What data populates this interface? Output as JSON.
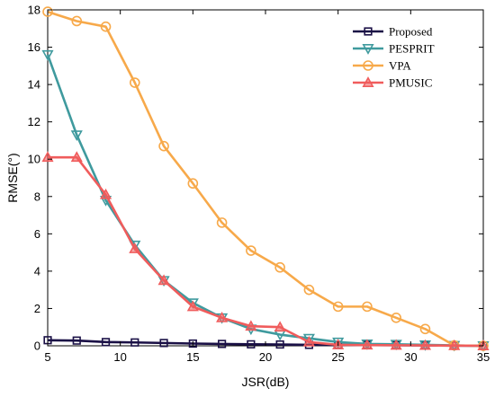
{
  "chart_data": {
    "type": "line",
    "title": "",
    "xlabel": "JSR(dB)",
    "ylabel": "RMSE(°)",
    "xlim": [
      5,
      35
    ],
    "ylim": [
      0,
      18
    ],
    "xticks": [
      5,
      10,
      15,
      20,
      25,
      30,
      35
    ],
    "yticks": [
      0,
      2,
      4,
      6,
      8,
      10,
      12,
      14,
      16,
      18
    ],
    "grid": false,
    "legend": "top-right",
    "x": [
      5,
      7,
      9,
      11,
      13,
      15,
      17,
      19,
      21,
      23,
      25,
      27,
      29,
      31,
      33,
      35
    ],
    "series": [
      {
        "name": "Proposed",
        "color": "#1a1046",
        "marker": "square",
        "values": [
          0.3,
          0.28,
          0.2,
          0.18,
          0.15,
          0.12,
          0.1,
          0.08,
          0.07,
          0.05,
          0.05,
          0.04,
          0.03,
          0.02,
          0.01,
          0.0
        ]
      },
      {
        "name": "PESPRIT",
        "color": "#3f9a9e",
        "marker": "triangle-down",
        "values": [
          15.6,
          11.3,
          7.8,
          5.4,
          3.5,
          2.3,
          1.5,
          0.9,
          0.6,
          0.4,
          0.2,
          0.1,
          0.08,
          0.05,
          0.02,
          0.0
        ]
      },
      {
        "name": "VPA",
        "color": "#f7a94a",
        "marker": "circle",
        "values": [
          17.9,
          17.4,
          17.1,
          14.1,
          10.7,
          8.7,
          6.6,
          5.1,
          4.2,
          3.0,
          2.1,
          2.1,
          1.5,
          0.9,
          0.02,
          0.0
        ]
      },
      {
        "name": "PMUSIC",
        "color": "#f05c5c",
        "marker": "triangle-up",
        "values": [
          10.1,
          10.1,
          8.1,
          5.2,
          3.5,
          2.1,
          1.5,
          1.05,
          1.0,
          0.2,
          0.05,
          0.04,
          0.03,
          0.02,
          0.01,
          0.0
        ]
      }
    ]
  }
}
